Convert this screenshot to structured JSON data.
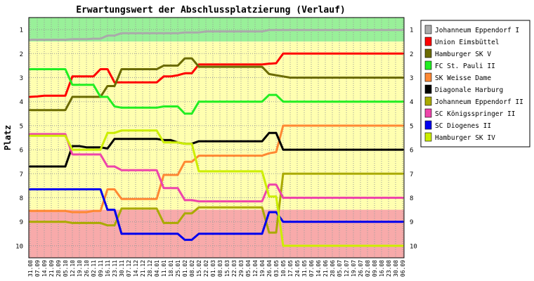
{
  "chart_data": {
    "type": "line",
    "title": "Erwartungswert der Abschlussplatzierung (Verlauf)",
    "ylabel": "Platz",
    "xlabel": "",
    "ylim": [
      0.5,
      10.5
    ],
    "y_inverted": true,
    "yticks": [
      1,
      2,
      3,
      4,
      5,
      6,
      7,
      8,
      9,
      10
    ],
    "x": [
      "31.08",
      "07.09",
      "14.09",
      "21.09",
      "28.09",
      "05.10",
      "12.10",
      "19.10",
      "26.10",
      "02.11",
      "09.11",
      "16.11",
      "23.11",
      "30.11",
      "07.12",
      "14.12",
      "21.12",
      "28.12",
      "04.01",
      "11.01",
      "18.01",
      "25.01",
      "01.02",
      "08.02",
      "15.02",
      "22.02",
      "01.03",
      "08.03",
      "15.03",
      "22.03",
      "29.03",
      "05.04",
      "12.04",
      "19.04",
      "26.04",
      "03.05",
      "10.05",
      "17.05",
      "24.05",
      "31.05",
      "07.06",
      "14.06",
      "21.06",
      "28.06",
      "05.07",
      "12.07",
      "19.07",
      "26.07",
      "02.08",
      "09.08",
      "16.08",
      "23.08",
      "30.08",
      "06.09"
    ],
    "background": [
      {
        "from": 0.5,
        "to": 1.5,
        "color": "#99f099"
      },
      {
        "from": 1.5,
        "to": 8.5,
        "color": "#ffffb0"
      },
      {
        "from": 8.5,
        "to": 10.5,
        "color": "#f8aaaa"
      }
    ],
    "grid": true,
    "legend_position": "right",
    "series": [
      {
        "name": "Johanneum Eppendorf I",
        "color": "#aaaaaa",
        "values": [
          1.42,
          1.42,
          1.42,
          1.42,
          1.42,
          1.42,
          1.4,
          1.4,
          1.4,
          1.38,
          1.38,
          1.25,
          1.25,
          1.15,
          1.15,
          1.15,
          1.15,
          1.15,
          1.15,
          1.15,
          1.15,
          1.15,
          1.12,
          1.12,
          1.12,
          1.08,
          1.08,
          1.08,
          1.08,
          1.08,
          1.08,
          1.08,
          1.08,
          1.08,
          1.02,
          1.02,
          1.02,
          1.02,
          1.02,
          1.02,
          1.02,
          1.02,
          1.02,
          1.02,
          1.02,
          1.02,
          1.02,
          1.02,
          1.02,
          1.02,
          1.02,
          1.02,
          1.02,
          1.02
        ]
      },
      {
        "name": "Union Eimsbüttel",
        "color": "#ff0000",
        "values": [
          3.8,
          3.78,
          3.75,
          3.75,
          3.75,
          3.75,
          2.95,
          2.95,
          2.95,
          2.95,
          2.65,
          2.65,
          3.2,
          3.2,
          3.2,
          3.2,
          3.2,
          3.2,
          3.2,
          2.95,
          2.95,
          2.9,
          2.82,
          2.82,
          2.45,
          2.45,
          2.45,
          2.45,
          2.45,
          2.45,
          2.45,
          2.45,
          2.45,
          2.45,
          2.42,
          2.4,
          2.0,
          2.0,
          2.0,
          2.0,
          2.0,
          2.0,
          2.0,
          2.0,
          2.0,
          2.0,
          2.0,
          2.0,
          2.0,
          2.0,
          2.0,
          2.0,
          2.0,
          2.0
        ]
      },
      {
        "name": "Hamburger SK V",
        "color": "#6b6b00",
        "values": [
          4.35,
          4.35,
          4.35,
          4.35,
          4.35,
          4.35,
          3.8,
          3.8,
          3.8,
          3.8,
          3.8,
          3.35,
          3.35,
          2.65,
          2.65,
          2.65,
          2.65,
          2.65,
          2.65,
          2.5,
          2.5,
          2.5,
          2.2,
          2.2,
          2.55,
          2.55,
          2.55,
          2.55,
          2.55,
          2.55,
          2.55,
          2.55,
          2.55,
          2.55,
          2.85,
          2.9,
          2.95,
          3.0,
          3.0,
          3.0,
          3.0,
          3.0,
          3.0,
          3.0,
          3.0,
          3.0,
          3.0,
          3.0,
          3.0,
          3.0,
          3.0,
          3.0,
          3.0,
          3.0
        ]
      },
      {
        "name": "FC St. Pauli II",
        "color": "#22ee22",
        "values": [
          2.65,
          2.65,
          2.65,
          2.65,
          2.65,
          2.65,
          3.3,
          3.3,
          3.3,
          3.3,
          3.8,
          3.8,
          4.2,
          4.25,
          4.25,
          4.25,
          4.25,
          4.25,
          4.25,
          4.2,
          4.2,
          4.2,
          4.5,
          4.5,
          4.0,
          4.0,
          4.0,
          4.0,
          4.0,
          4.0,
          4.0,
          4.0,
          4.0,
          4.0,
          3.72,
          3.72,
          4.0,
          4.0,
          4.0,
          4.0,
          4.0,
          4.0,
          4.0,
          4.0,
          4.0,
          4.0,
          4.0,
          4.0,
          4.0,
          4.0,
          4.0,
          4.0,
          4.0,
          4.0
        ]
      },
      {
        "name": "SK Weisse Dame",
        "color": "#ff8833",
        "values": [
          8.55,
          8.55,
          8.55,
          8.55,
          8.55,
          8.55,
          8.6,
          8.6,
          8.6,
          8.55,
          8.55,
          7.65,
          7.65,
          8.05,
          8.05,
          8.05,
          8.05,
          8.05,
          8.05,
          7.05,
          7.05,
          7.05,
          6.5,
          6.5,
          6.25,
          6.25,
          6.25,
          6.25,
          6.25,
          6.25,
          6.25,
          6.25,
          6.25,
          6.25,
          6.15,
          6.1,
          5.0,
          5.0,
          5.0,
          5.0,
          5.0,
          5.0,
          5.0,
          5.0,
          5.0,
          5.0,
          5.0,
          5.0,
          5.0,
          5.0,
          5.0,
          5.0,
          5.0,
          5.0
        ]
      },
      {
        "name": "Diagonale Harburg",
        "color": "#000000",
        "values": [
          6.7,
          6.7,
          6.7,
          6.7,
          6.7,
          6.7,
          5.85,
          5.85,
          5.9,
          5.9,
          5.9,
          5.95,
          5.55,
          5.55,
          5.55,
          5.55,
          5.55,
          5.55,
          5.55,
          5.6,
          5.6,
          5.7,
          5.75,
          5.75,
          5.65,
          5.65,
          5.65,
          5.65,
          5.65,
          5.65,
          5.65,
          5.65,
          5.65,
          5.65,
          5.3,
          5.3,
          6.0,
          6.0,
          6.0,
          6.0,
          6.0,
          6.0,
          6.0,
          6.0,
          6.0,
          6.0,
          6.0,
          6.0,
          6.0,
          6.0,
          6.0,
          6.0,
          6.0,
          6.0
        ]
      },
      {
        "name": "Johanneum Eppendorf II",
        "color": "#aaaa00",
        "values": [
          9.0,
          9.0,
          9.0,
          9.0,
          9.0,
          9.0,
          9.05,
          9.05,
          9.05,
          9.05,
          9.05,
          9.15,
          9.15,
          8.45,
          8.45,
          8.45,
          8.45,
          8.45,
          8.45,
          9.05,
          9.05,
          9.05,
          8.65,
          8.65,
          8.4,
          8.4,
          8.4,
          8.4,
          8.4,
          8.4,
          8.4,
          8.4,
          8.4,
          8.4,
          9.45,
          9.45,
          7.0,
          7.0,
          7.0,
          7.0,
          7.0,
          7.0,
          7.0,
          7.0,
          7.0,
          7.0,
          7.0,
          7.0,
          7.0,
          7.0,
          7.0,
          7.0,
          7.0,
          7.0
        ]
      },
      {
        "name": "SC Königsspringer II",
        "color": "#ee44aa",
        "values": [
          5.35,
          5.35,
          5.35,
          5.35,
          5.35,
          5.35,
          6.2,
          6.2,
          6.2,
          6.2,
          6.2,
          6.7,
          6.7,
          6.85,
          6.85,
          6.85,
          6.85,
          6.85,
          6.85,
          7.6,
          7.6,
          7.6,
          8.1,
          8.1,
          8.15,
          8.15,
          8.15,
          8.15,
          8.15,
          8.15,
          8.15,
          8.15,
          8.15,
          8.15,
          7.45,
          7.45,
          8.0,
          8.0,
          8.0,
          8.0,
          8.0,
          8.0,
          8.0,
          8.0,
          8.0,
          8.0,
          8.0,
          8.0,
          8.0,
          8.0,
          8.0,
          8.0,
          8.0,
          8.0
        ]
      },
      {
        "name": "SC Diogenes II",
        "color": "#0000ee",
        "values": [
          7.65,
          7.65,
          7.65,
          7.65,
          7.65,
          7.65,
          7.65,
          7.65,
          7.65,
          7.65,
          7.65,
          8.5,
          8.5,
          9.5,
          9.5,
          9.5,
          9.5,
          9.5,
          9.5,
          9.5,
          9.5,
          9.5,
          9.75,
          9.75,
          9.5,
          9.5,
          9.5,
          9.5,
          9.5,
          9.5,
          9.5,
          9.5,
          9.5,
          9.5,
          8.6,
          8.6,
          9.0,
          9.0,
          9.0,
          9.0,
          9.0,
          9.0,
          9.0,
          9.0,
          9.0,
          9.0,
          9.0,
          9.0,
          9.0,
          9.0,
          9.0,
          9.0,
          9.0,
          9.0
        ]
      },
      {
        "name": "Hamburger SK IV",
        "color": "#ccee00",
        "values": [
          5.42,
          5.42,
          5.42,
          5.42,
          5.42,
          5.42,
          6.0,
          6.0,
          6.0,
          6.0,
          6.0,
          5.3,
          5.3,
          5.2,
          5.2,
          5.2,
          5.2,
          5.2,
          5.2,
          5.7,
          5.7,
          5.7,
          5.75,
          5.75,
          6.9,
          6.9,
          6.9,
          6.9,
          6.9,
          6.9,
          6.9,
          6.9,
          6.9,
          6.9,
          7.95,
          7.95,
          10.0,
          10.0,
          10.0,
          10.0,
          10.0,
          10.0,
          10.0,
          10.0,
          10.0,
          10.0,
          10.0,
          10.0,
          10.0,
          10.0,
          10.0,
          10.0,
          10.0,
          10.0
        ]
      }
    ]
  }
}
